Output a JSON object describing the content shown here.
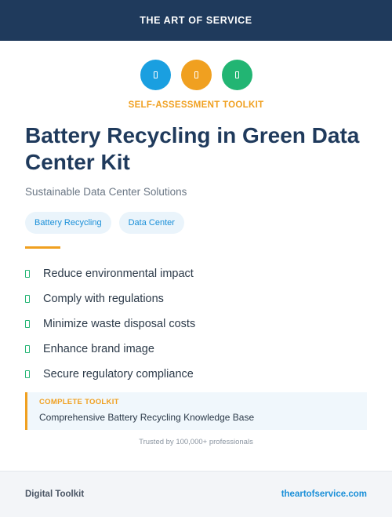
{
  "header": {
    "brand": "THE ART OF SERVICE"
  },
  "icons": [
    {
      "name": "recycle-icon",
      "color": "#1a9fe0"
    },
    {
      "name": "battery-icon",
      "color": "#f0a020"
    },
    {
      "name": "leaf-icon",
      "color": "#22b573"
    }
  ],
  "eyebrow": "SELF-ASSESSMENT TOOLKIT",
  "title": "Battery Recycling in Green Data Center Kit",
  "subtitle": "Sustainable Data Center Solutions",
  "tags": [
    "Battery Recycling",
    "Data Center"
  ],
  "features": [
    "Reduce environmental impact",
    "Comply with regulations",
    "Minimize waste disposal costs",
    "Enhance brand image",
    "Secure regulatory compliance"
  ],
  "callout": {
    "label": "COMPLETE TOOLKIT",
    "text": "Comprehensive Battery Recycling Knowledge Base"
  },
  "trust": "Trusted by 100,000+ professionals",
  "footer": {
    "left": "Digital Toolkit",
    "right": "theartofservice.com"
  },
  "colors": {
    "header_bg": "#1f3a5c",
    "accent_orange": "#f0a020",
    "accent_blue": "#1a8fd8",
    "accent_green": "#22b573"
  }
}
